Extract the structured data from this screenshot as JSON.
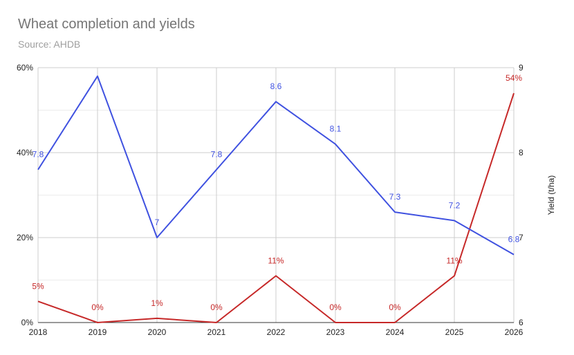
{
  "chart": {
    "title": "Wheat completion and yields",
    "subtitle": "Source: AHDB"
  },
  "chart_data": {
    "type": "line",
    "title": "Wheat completion and yields",
    "subtitle": "Source: AHDB",
    "x": [
      "2018",
      "2019",
      "2020",
      "2021",
      "2022",
      "2023",
      "2024",
      "2025",
      "2026"
    ],
    "series": [
      {
        "axis": "left",
        "color": "#c62828",
        "values": [
          5,
          0,
          1,
          0,
          11,
          0,
          0,
          11,
          54
        ],
        "labels": [
          "5%",
          "0%",
          "1%",
          "0%",
          "11%",
          "0%",
          "0%",
          "11%",
          "54%"
        ]
      },
      {
        "axis": "right",
        "color": "#3f51e0",
        "values": [
          7.8,
          8.9,
          7,
          7.8,
          8.6,
          8.1,
          7.3,
          7.2,
          6.8
        ],
        "labels": [
          "7.8",
          "",
          "7",
          "7.8",
          "8.6",
          "8.1",
          "7.3",
          "7.2",
          "6.8"
        ]
      }
    ],
    "y_left": {
      "ylim": [
        0,
        60
      ],
      "ticks": [
        "0%",
        "20%",
        "40%",
        "60%"
      ]
    },
    "y_right": {
      "ylim": [
        6,
        9
      ],
      "ticks": [
        "6",
        "7",
        "8",
        "9"
      ],
      "label": "Yield (t/ha)"
    },
    "grid": true
  }
}
